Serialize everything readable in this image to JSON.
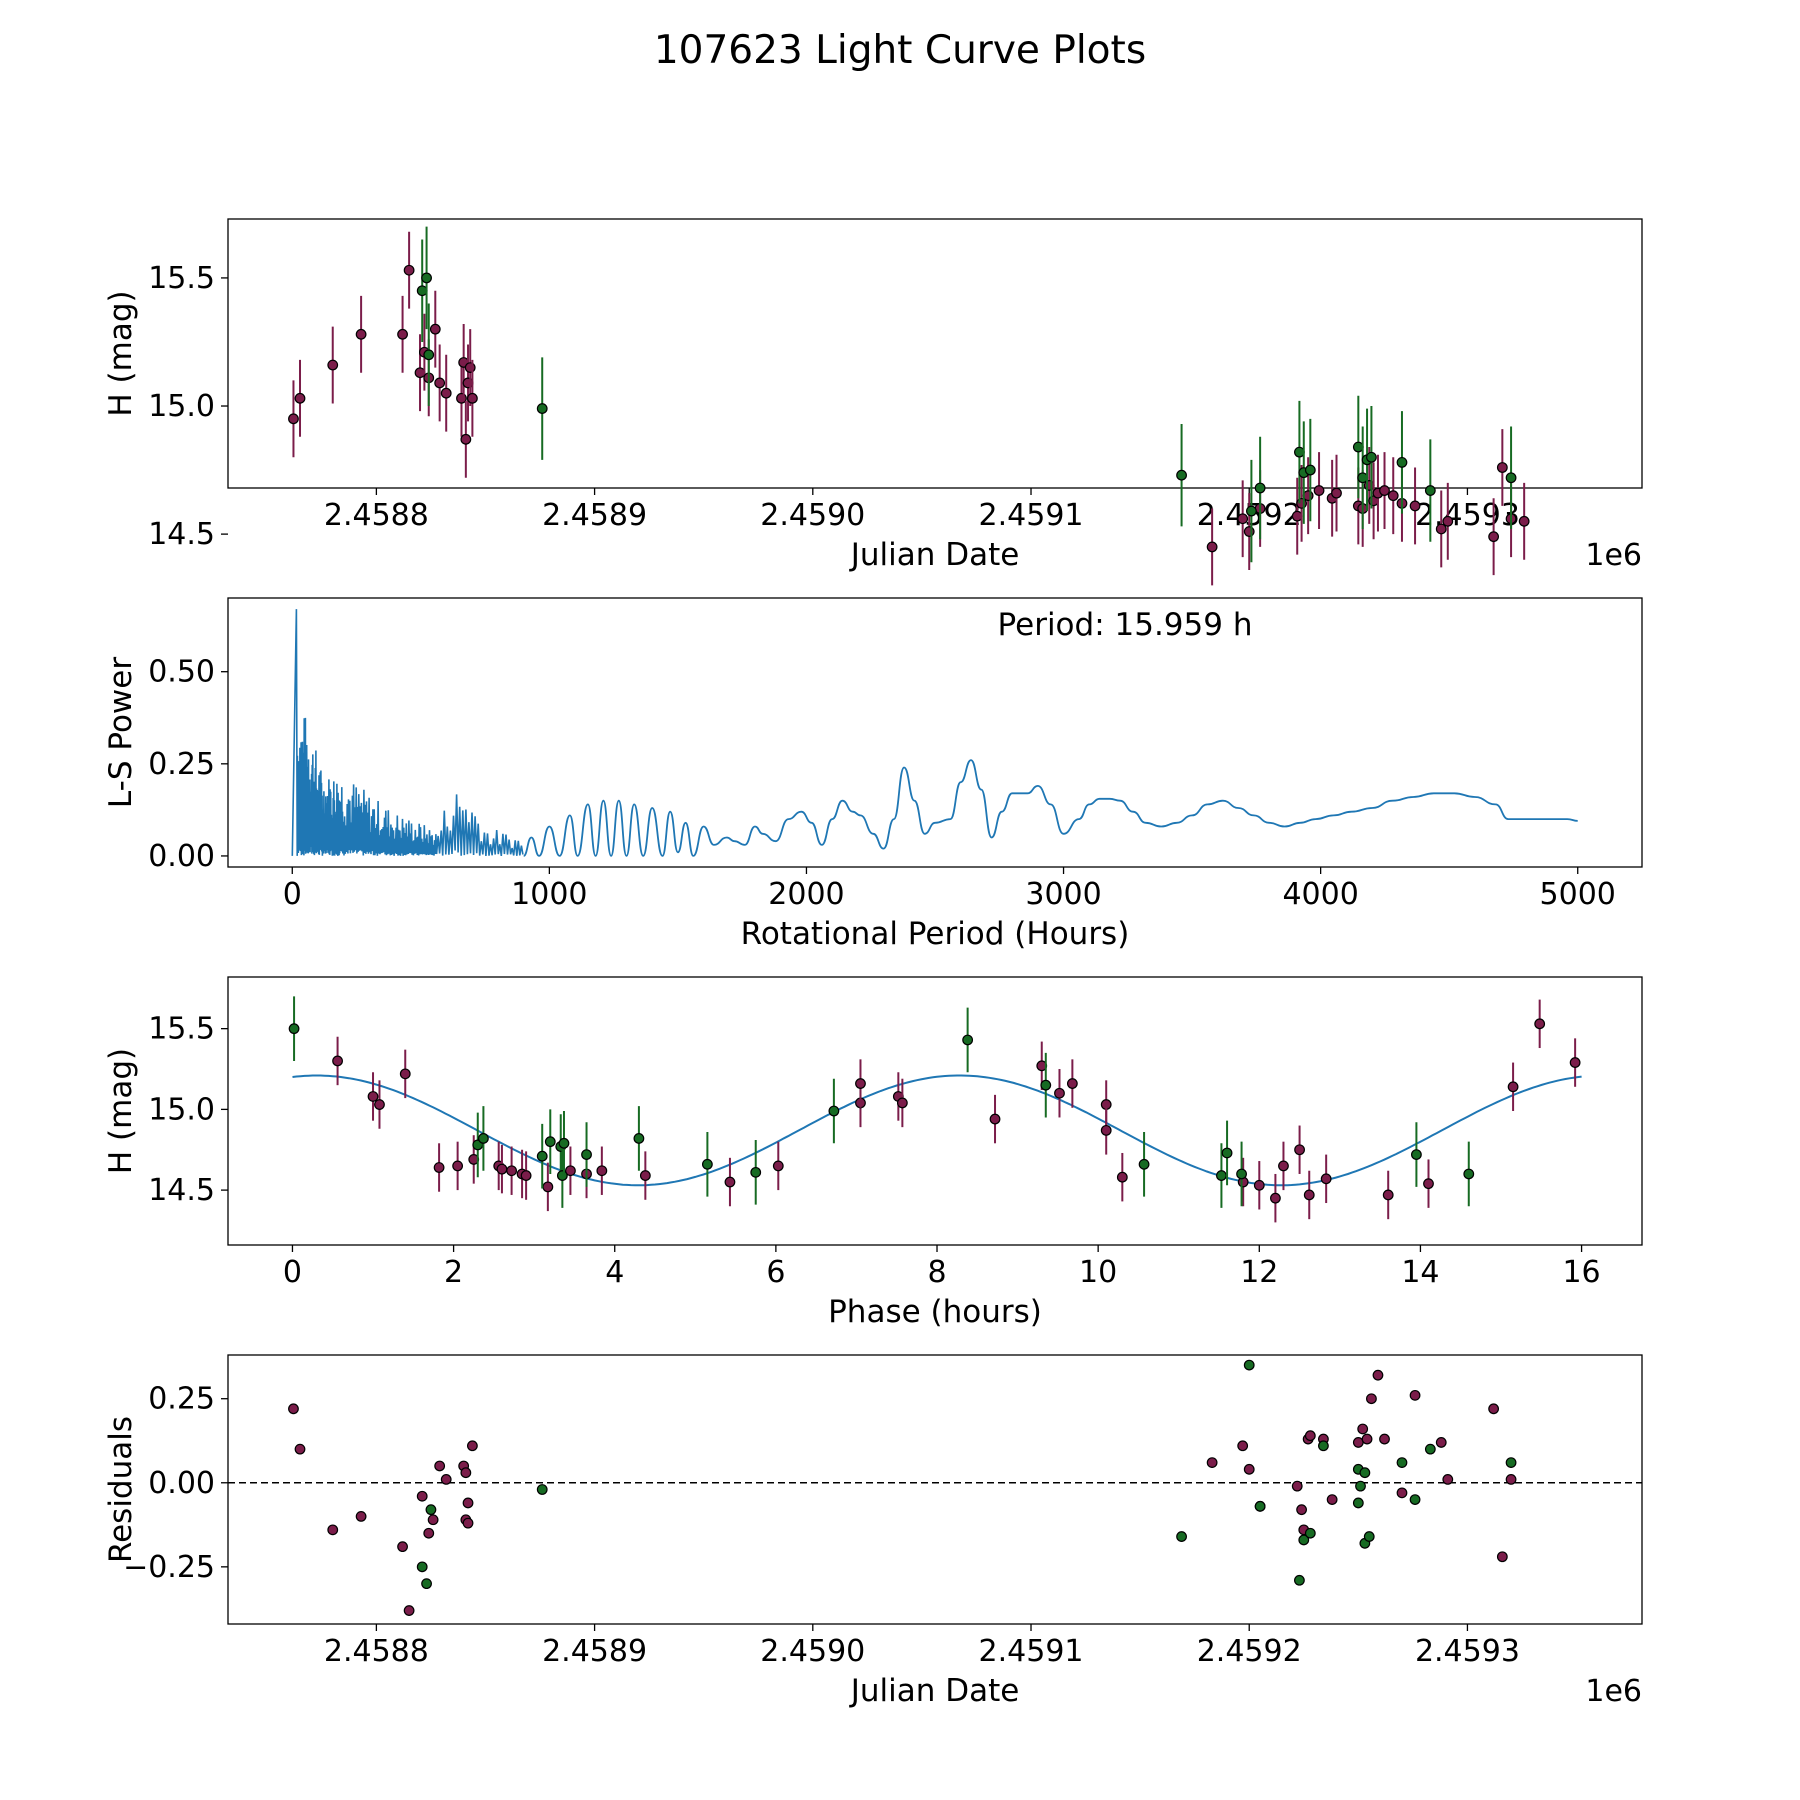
{
  "figure": {
    "title": "107623 Light Curve Plots"
  },
  "colors": {
    "red": "#7b1d4a",
    "green": "#176b23",
    "line": "#1f77b4",
    "axis": "#000000"
  },
  "chart_data": [
    {
      "type": "scatter",
      "title": "",
      "xlabel": "Julian Date",
      "ylabel": "H (mag)",
      "x_offset_label": "1e6",
      "xlim": [
        2458732,
        2459380
      ],
      "ylim": [
        14.68,
        15.73
      ],
      "xticks": [
        2458800,
        2458900,
        2459000,
        2459100,
        2459200,
        2459300
      ],
      "xtick_labels": [
        "2.4588",
        "2.4589",
        "2.4590",
        "2.4591",
        "2.4592",
        "2.4593"
      ],
      "yticks": [
        14.5,
        15.0,
        15.5
      ],
      "ytick_labels": [
        "14.5",
        "15.0",
        "15.5"
      ],
      "series": [
        {
          "name": "red",
          "color": "#7b1d4a",
          "err": 0.15,
          "points": [
            [
              2458762,
              14.95
            ],
            [
              2458765,
              15.03
            ],
            [
              2458780,
              15.16
            ],
            [
              2458793,
              15.28
            ],
            [
              2458812,
              15.28
            ],
            [
              2458815,
              15.53
            ],
            [
              2458820,
              15.13
            ],
            [
              2458822,
              15.21
            ],
            [
              2458824,
              15.11
            ],
            [
              2458827,
              15.3
            ],
            [
              2458829,
              15.09
            ],
            [
              2458832,
              15.05
            ],
            [
              2458839,
              15.03
            ],
            [
              2458840,
              15.17
            ],
            [
              2458841,
              14.87
            ],
            [
              2458842,
              15.09
            ],
            [
              2458843,
              15.15
            ],
            [
              2458844,
              15.03
            ],
            [
              2459183,
              14.45
            ],
            [
              2459197,
              14.56
            ],
            [
              2459200,
              14.51
            ],
            [
              2459205,
              14.6
            ],
            [
              2459222,
              14.57
            ],
            [
              2459224,
              14.62
            ],
            [
              2459227,
              14.65
            ],
            [
              2459232,
              14.67
            ],
            [
              2459238,
              14.64
            ],
            [
              2459240,
              14.66
            ],
            [
              2459250,
              14.61
            ],
            [
              2459252,
              14.6
            ],
            [
              2459255,
              14.69
            ],
            [
              2459257,
              14.63
            ],
            [
              2459259,
              14.66
            ],
            [
              2459262,
              14.67
            ],
            [
              2459266,
              14.65
            ],
            [
              2459270,
              14.62
            ],
            [
              2459276,
              14.61
            ],
            [
              2459288,
              14.52
            ],
            [
              2459291,
              14.55
            ],
            [
              2459312,
              14.49
            ],
            [
              2459316,
              14.76
            ],
            [
              2459320,
              14.56
            ],
            [
              2459326,
              14.55
            ]
          ]
        },
        {
          "name": "green",
          "color": "#176b23",
          "err": 0.2,
          "points": [
            [
              2458821,
              15.45
            ],
            [
              2458823,
              15.5
            ],
            [
              2458824,
              15.2
            ],
            [
              2458876,
              14.99
            ],
            [
              2459169,
              14.73
            ],
            [
              2459201,
              14.59
            ],
            [
              2459205,
              14.68
            ],
            [
              2459223,
              14.82
            ],
            [
              2459225,
              14.74
            ],
            [
              2459228,
              14.75
            ],
            [
              2459250,
              14.84
            ],
            [
              2459252,
              14.72
            ],
            [
              2459254,
              14.79
            ],
            [
              2459256,
              14.8
            ],
            [
              2459270,
              14.78
            ],
            [
              2459283,
              14.67
            ],
            [
              2459320,
              14.72
            ]
          ]
        }
      ]
    },
    {
      "type": "line",
      "title": "",
      "xlabel": "Rotational Period (Hours)",
      "ylabel": "L-S Power",
      "annotation": "Period: 15.959 h",
      "xlim": [
        -250,
        5250
      ],
      "ylim": [
        -0.03,
        0.7
      ],
      "xticks": [
        0,
        1000,
        2000,
        3000,
        4000,
        5000
      ],
      "xtick_labels": [
        "0",
        "1000",
        "2000",
        "3000",
        "4000",
        "5000"
      ],
      "yticks": [
        0,
        0.25,
        0.5
      ],
      "ytick_labels": [
        "0.00",
        "0.25",
        "0.50"
      ],
      "peak": {
        "x": 16,
        "y": 0.67
      },
      "envelope_x": [
        0,
        60,
        120,
        200,
        300,
        400,
        500,
        560,
        620,
        680,
        760,
        850,
        900
      ],
      "envelope_y": [
        0.42,
        0.38,
        0.22,
        0.23,
        0.17,
        0.12,
        0.09,
        0.07,
        0.19,
        0.19,
        0.08,
        0.06,
        0.05
      ],
      "smooth_x": [
        900,
        930,
        960,
        1000,
        1040,
        1080,
        1110,
        1150,
        1180,
        1210,
        1240,
        1270,
        1300,
        1330,
        1365,
        1400,
        1440,
        1470,
        1500,
        1530,
        1560,
        1600,
        1640,
        1690,
        1720,
        1760,
        1800,
        1830,
        1880,
        1930,
        1980,
        2020,
        2060,
        2100,
        2140,
        2180,
        2210,
        2260,
        2300,
        2340,
        2380,
        2420,
        2460,
        2500,
        2560,
        2600,
        2640,
        2680,
        2720,
        2760,
        2800,
        2860,
        2900,
        2950,
        3000,
        3060,
        3100,
        3140,
        3180,
        3220,
        3270,
        3320,
        3380,
        3440,
        3500,
        3560,
        3620,
        3680,
        3740,
        3800,
        3860,
        3920,
        3980,
        4050,
        4120,
        4200,
        4280,
        4360,
        4440,
        4520,
        4600,
        4680,
        4730,
        4800,
        4880,
        4960,
        5000
      ],
      "smooth_y": [
        0.0,
        0.05,
        0.0,
        0.08,
        0.0,
        0.11,
        0.0,
        0.14,
        0.0,
        0.15,
        0.0,
        0.15,
        0.0,
        0.14,
        0.0,
        0.13,
        0.0,
        0.12,
        0.01,
        0.09,
        0.0,
        0.08,
        0.03,
        0.05,
        0.04,
        0.03,
        0.08,
        0.06,
        0.04,
        0.1,
        0.12,
        0.09,
        0.03,
        0.1,
        0.15,
        0.12,
        0.11,
        0.06,
        0.02,
        0.1,
        0.24,
        0.15,
        0.06,
        0.09,
        0.1,
        0.2,
        0.26,
        0.18,
        0.05,
        0.12,
        0.17,
        0.17,
        0.19,
        0.14,
        0.06,
        0.1,
        0.14,
        0.155,
        0.155,
        0.15,
        0.12,
        0.09,
        0.08,
        0.09,
        0.11,
        0.14,
        0.15,
        0.13,
        0.11,
        0.09,
        0.08,
        0.09,
        0.1,
        0.11,
        0.12,
        0.13,
        0.15,
        0.16,
        0.17,
        0.17,
        0.16,
        0.14,
        0.1,
        0.1,
        0.1,
        0.1,
        0.095
      ]
    },
    {
      "type": "scatter",
      "title": "",
      "xlabel": "Phase (hours)",
      "ylabel": "H (mag)",
      "xlim": [
        -0.8,
        16.75
      ],
      "ylim": [
        14.16,
        15.82
      ],
      "xticks": [
        0,
        2,
        4,
        6,
        8,
        10,
        12,
        14,
        16
      ],
      "xtick_labels": [
        "0",
        "2",
        "4",
        "6",
        "8",
        "10",
        "12",
        "14",
        "16"
      ],
      "yticks": [
        14.5,
        15.0,
        15.5
      ],
      "ytick_labels": [
        "14.5",
        "15.0",
        "15.5"
      ],
      "model": {
        "amplitude": 0.34,
        "mean": 14.87,
        "period": 7.98,
        "phase_max": 0.3
      },
      "series": [
        {
          "name": "red",
          "color": "#7b1d4a",
          "err": 0.15,
          "points": [
            [
              0.56,
              15.3
            ],
            [
              1.0,
              15.08
            ],
            [
              1.08,
              15.03
            ],
            [
              1.4,
              15.22
            ],
            [
              1.82,
              14.64
            ],
            [
              2.05,
              14.65
            ],
            [
              2.25,
              14.69
            ],
            [
              2.56,
              14.65
            ],
            [
              2.6,
              14.63
            ],
            [
              2.72,
              14.62
            ],
            [
              2.85,
              14.6
            ],
            [
              2.9,
              14.59
            ],
            [
              3.17,
              14.52
            ],
            [
              3.45,
              14.62
            ],
            [
              3.65,
              14.6
            ],
            [
              3.84,
              14.62
            ],
            [
              4.38,
              14.59
            ],
            [
              5.43,
              14.55
            ],
            [
              6.03,
              14.65
            ],
            [
              7.05,
              15.04
            ],
            [
              7.05,
              15.16
            ],
            [
              7.52,
              15.08
            ],
            [
              7.57,
              15.04
            ],
            [
              8.72,
              14.94
            ],
            [
              9.3,
              15.27
            ],
            [
              9.52,
              15.1
            ],
            [
              9.68,
              15.16
            ],
            [
              10.1,
              15.03
            ],
            [
              10.1,
              14.87
            ],
            [
              10.3,
              14.58
            ],
            [
              11.8,
              14.55
            ],
            [
              12.0,
              14.53
            ],
            [
              12.2,
              14.45
            ],
            [
              12.3,
              14.65
            ],
            [
              12.5,
              14.75
            ],
            [
              12.62,
              14.47
            ],
            [
              12.83,
              14.57
            ],
            [
              13.6,
              14.47
            ],
            [
              14.1,
              14.54
            ],
            [
              15.15,
              15.14
            ],
            [
              15.48,
              15.53
            ],
            [
              15.92,
              15.29
            ]
          ]
        },
        {
          "name": "green",
          "color": "#176b23",
          "err": 0.2,
          "points": [
            [
              0.02,
              15.5
            ],
            [
              2.3,
              14.78
            ],
            [
              2.37,
              14.82
            ],
            [
              3.1,
              14.71
            ],
            [
              3.2,
              14.8
            ],
            [
              3.33,
              14.77
            ],
            [
              3.35,
              14.59
            ],
            [
              3.37,
              14.79
            ],
            [
              3.65,
              14.72
            ],
            [
              4.3,
              14.82
            ],
            [
              5.15,
              14.66
            ],
            [
              5.75,
              14.61
            ],
            [
              6.72,
              14.99
            ],
            [
              8.38,
              15.43
            ],
            [
              9.35,
              15.15
            ],
            [
              10.57,
              14.66
            ],
            [
              11.53,
              14.59
            ],
            [
              11.6,
              14.73
            ],
            [
              11.78,
              14.6
            ],
            [
              13.95,
              14.72
            ],
            [
              14.6,
              14.6
            ]
          ]
        }
      ]
    },
    {
      "type": "scatter",
      "title": "",
      "xlabel": "Julian Date",
      "ylabel": "Residuals",
      "x_offset_label": "1e6",
      "xlim": [
        2458732,
        2459380
      ],
      "ylim": [
        -0.42,
        0.38
      ],
      "xticks": [
        2458800,
        2458900,
        2459000,
        2459100,
        2459200,
        2459300
      ],
      "xtick_labels": [
        "2.4588",
        "2.4589",
        "2.4590",
        "2.4591",
        "2.4592",
        "2.4593"
      ],
      "yticks": [
        -0.25,
        0.0,
        0.25
      ],
      "ytick_labels": [
        "−0.25",
        "0.00",
        "0.25"
      ],
      "reference_line": 0.0,
      "series": [
        {
          "name": "red",
          "color": "#7b1d4a",
          "points": [
            [
              2458762,
              0.22
            ],
            [
              2458765,
              0.1
            ],
            [
              2458780,
              -0.14
            ],
            [
              2458793,
              -0.1
            ],
            [
              2458812,
              -0.19
            ],
            [
              2458815,
              -0.38
            ],
            [
              2458821,
              -0.04
            ],
            [
              2458824,
              -0.15
            ],
            [
              2458829,
              0.05
            ],
            [
              2458832,
              0.01
            ],
            [
              2458826,
              -0.11
            ],
            [
              2458840,
              0.05
            ],
            [
              2458841,
              0.03
            ],
            [
              2458842,
              -0.06
            ],
            [
              2458841,
              -0.11
            ],
            [
              2458842,
              -0.12
            ],
            [
              2458844,
              0.11
            ],
            [
              2459183,
              0.06
            ],
            [
              2459197,
              0.11
            ],
            [
              2459200,
              0.04
            ],
            [
              2459205,
              -0.07
            ],
            [
              2459222,
              -0.01
            ],
            [
              2459224,
              -0.08
            ],
            [
              2459225,
              -0.14
            ],
            [
              2459227,
              0.13
            ],
            [
              2459228,
              0.14
            ],
            [
              2459234,
              0.13
            ],
            [
              2459238,
              -0.05
            ],
            [
              2459250,
              0.12
            ],
            [
              2459252,
              0.16
            ],
            [
              2459254,
              0.13
            ],
            [
              2459256,
              0.25
            ],
            [
              2459259,
              0.32
            ],
            [
              2459262,
              0.13
            ],
            [
              2459270,
              -0.03
            ],
            [
              2459276,
              0.26
            ],
            [
              2459288,
              0.12
            ],
            [
              2459291,
              0.01
            ],
            [
              2459312,
              0.22
            ],
            [
              2459316,
              -0.22
            ],
            [
              2459320,
              0.01
            ]
          ]
        },
        {
          "name": "green",
          "color": "#176b23",
          "points": [
            [
              2458821,
              -0.25
            ],
            [
              2458823,
              -0.3
            ],
            [
              2458825,
              -0.08
            ],
            [
              2458876,
              -0.02
            ],
            [
              2459169,
              -0.16
            ],
            [
              2459200,
              0.35
            ],
            [
              2459205,
              -0.07
            ],
            [
              2459223,
              -0.29
            ],
            [
              2459225,
              -0.17
            ],
            [
              2459228,
              -0.15
            ],
            [
              2459234,
              0.11
            ],
            [
              2459250,
              0.04
            ],
            [
              2459251,
              -0.01
            ],
            [
              2459250,
              -0.06
            ],
            [
              2459253,
              0.03
            ],
            [
              2459253,
              -0.18
            ],
            [
              2459255,
              -0.16
            ],
            [
              2459270,
              0.06
            ],
            [
              2459276,
              -0.05
            ],
            [
              2459283,
              0.1
            ],
            [
              2459320,
              0.06
            ]
          ]
        }
      ]
    }
  ]
}
